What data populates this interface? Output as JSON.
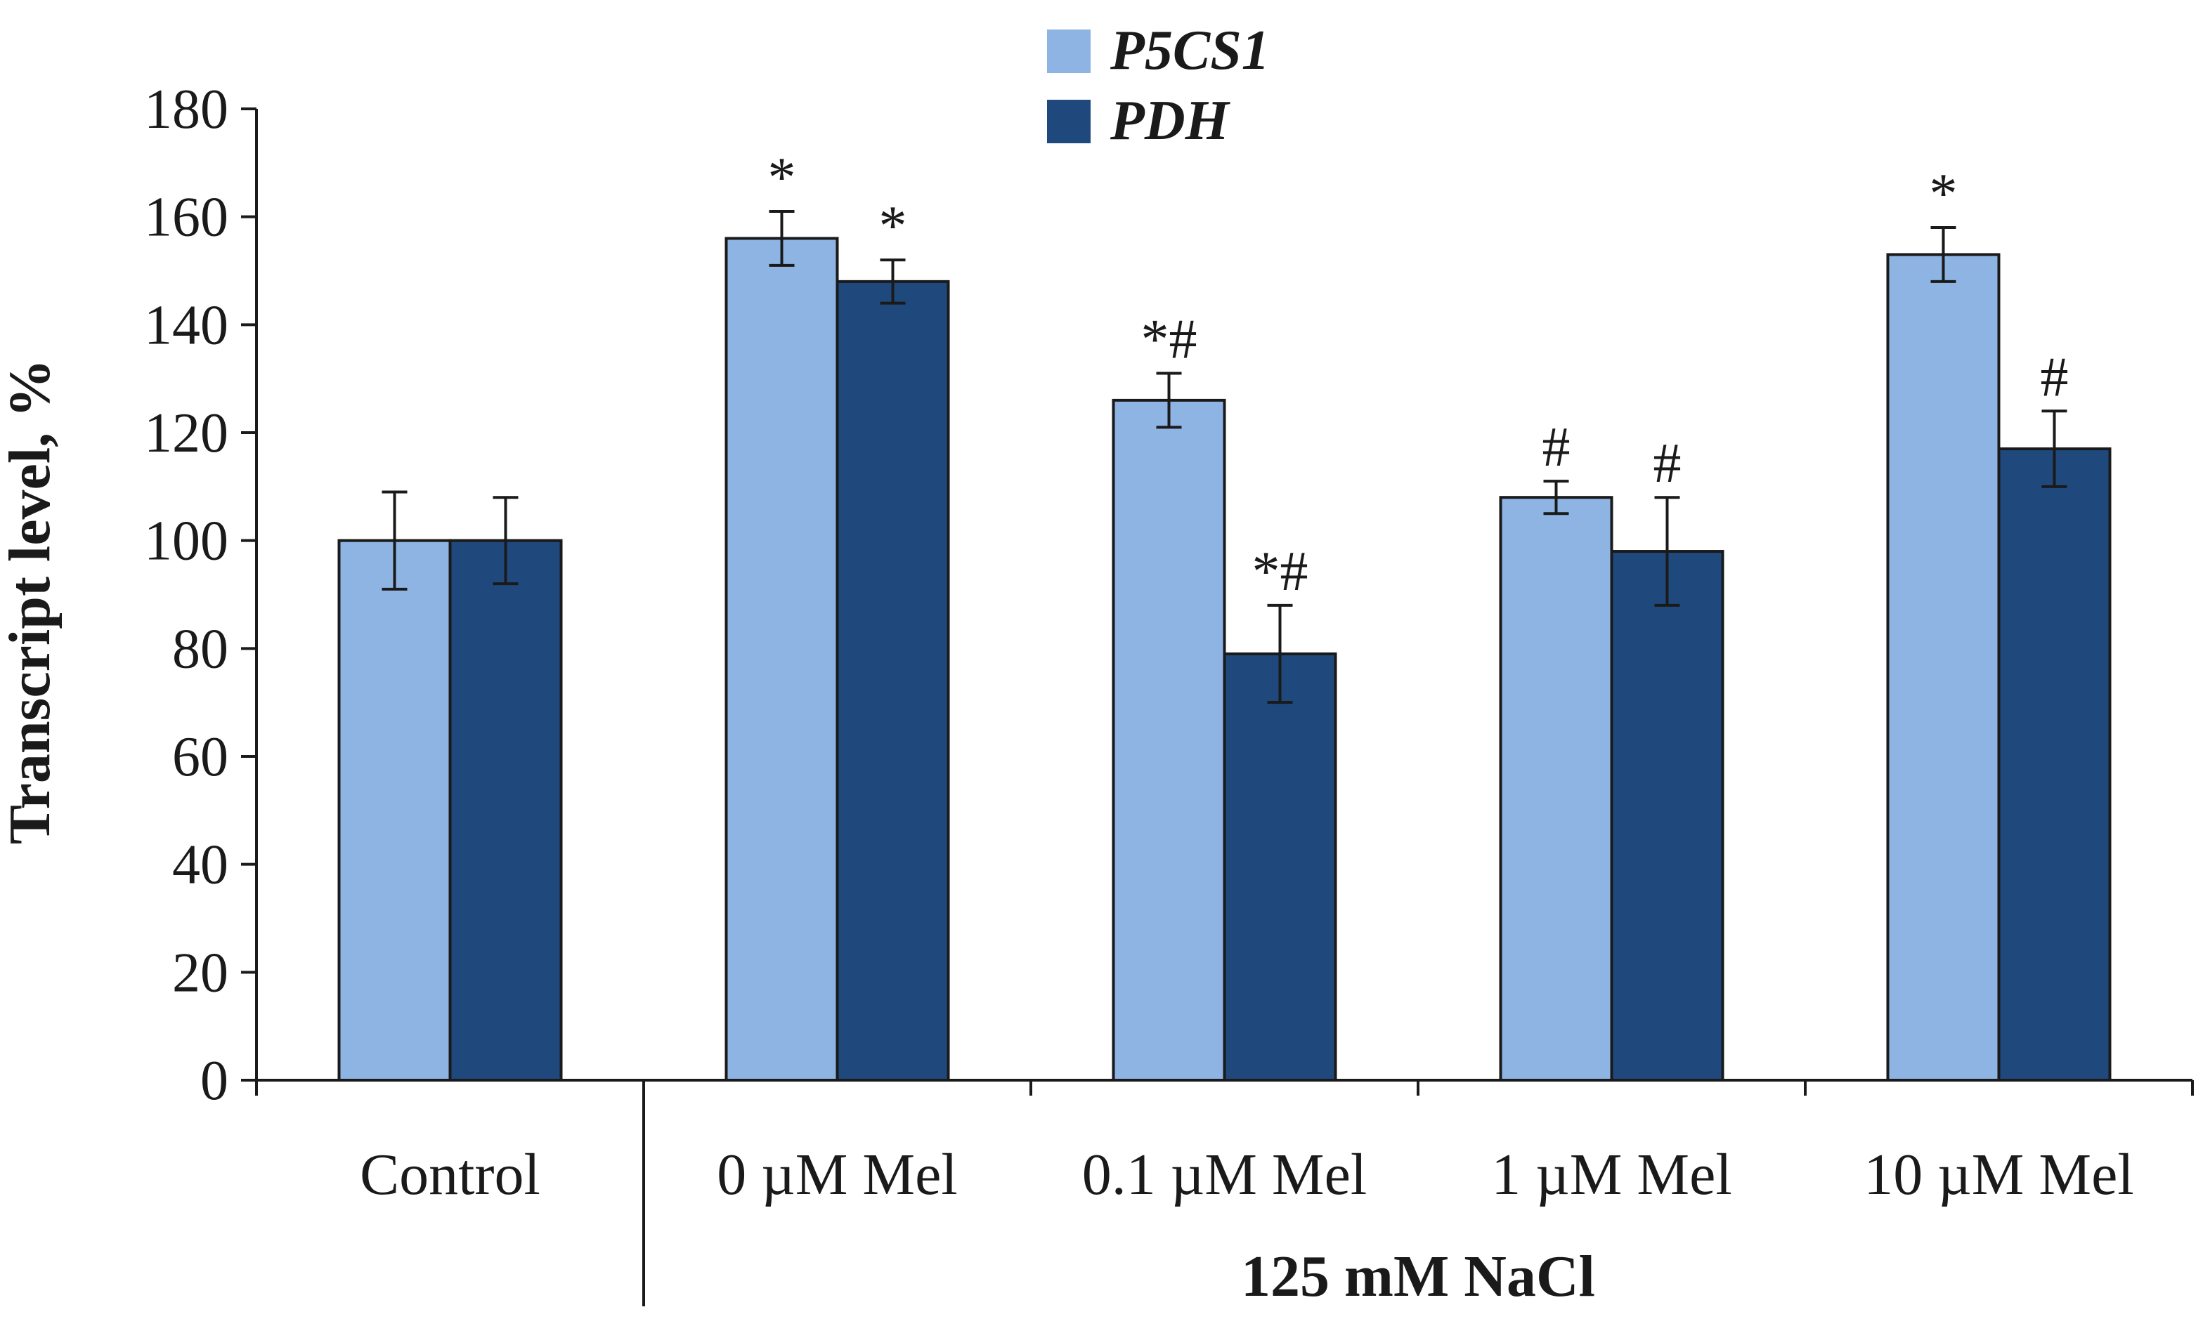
{
  "chart_data": {
    "type": "bar",
    "title": "",
    "xlabel": "",
    "ylabel": "Transcript level, %",
    "ylim": [
      0,
      180
    ],
    "yticks": [
      0,
      20,
      40,
      60,
      80,
      100,
      120,
      140,
      160,
      180
    ],
    "grid": false,
    "legend_position": "top-center",
    "categories": [
      "Control",
      "0 µM Mel",
      "0.1 µM Mel",
      "1 µM Mel",
      "10 µM Mel"
    ],
    "group_label": "125 mM NaCl",
    "group_span": [
      "0 µM Mel",
      "10 µM Mel"
    ],
    "series": [
      {
        "name": "P5CS1",
        "color": "#8EB4E3",
        "values": [
          100,
          156,
          126,
          108,
          153
        ],
        "errors": [
          9,
          5,
          5,
          3,
          5
        ],
        "annotations": [
          "",
          "*",
          "*#",
          "#",
          "*"
        ]
      },
      {
        "name": "PDH",
        "color": "#1F497D",
        "values": [
          100,
          148,
          79,
          98,
          117
        ],
        "errors": [
          8,
          4,
          9,
          10,
          7
        ],
        "annotations": [
          "",
          "*",
          "*#",
          "#",
          "#"
        ]
      }
    ]
  }
}
